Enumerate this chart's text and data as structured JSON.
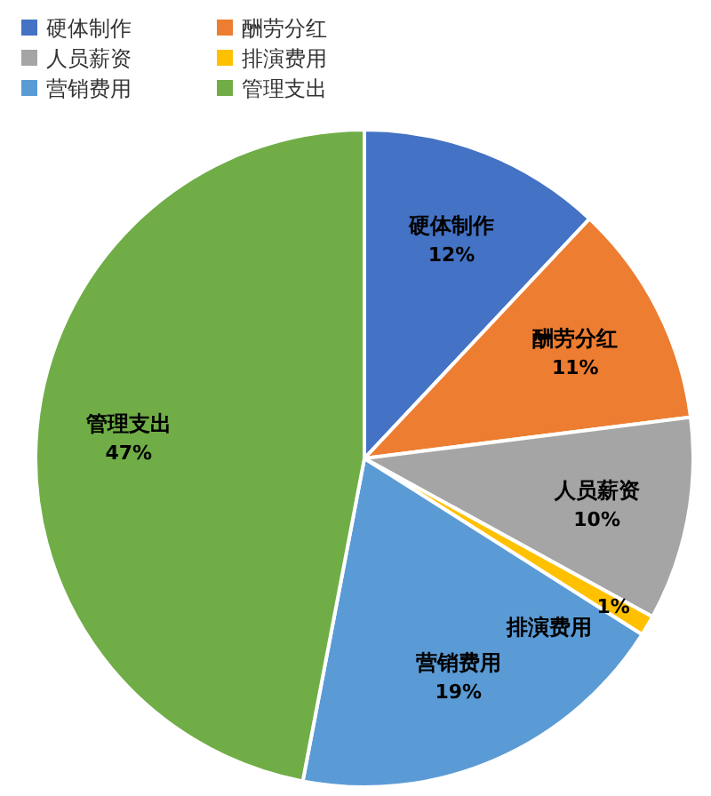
{
  "chart_data": {
    "type": "pie",
    "categories": [
      "硬体制作",
      "酬劳分红",
      "人员薪资",
      "排演费用",
      "营销费用",
      "管理支出"
    ],
    "values": [
      12,
      11,
      10,
      1,
      19,
      47
    ],
    "value_labels": [
      "12%",
      "11%",
      "10%",
      "1%",
      "19%",
      "47%"
    ],
    "colors": [
      "#4472c4",
      "#ed7d31",
      "#a5a5a5",
      "#ffc000",
      "#5b9bd5",
      "#70ad47"
    ],
    "legend": "top left"
  }
}
